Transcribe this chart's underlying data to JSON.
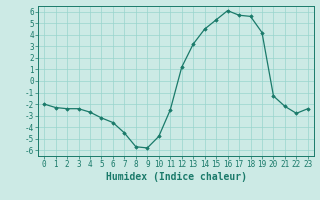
{
  "x": [
    0,
    1,
    2,
    3,
    4,
    5,
    6,
    7,
    8,
    9,
    10,
    11,
    12,
    13,
    14,
    15,
    16,
    17,
    18,
    19,
    20,
    21,
    22,
    23
  ],
  "y": [
    -2.0,
    -2.3,
    -2.4,
    -2.4,
    -2.7,
    -3.2,
    -3.6,
    -4.5,
    -5.7,
    -5.8,
    -4.8,
    -2.5,
    1.2,
    3.2,
    4.5,
    5.3,
    6.1,
    5.7,
    5.6,
    4.2,
    -1.3,
    -2.2,
    -2.8,
    -2.4
  ],
  "line_color": "#1a7a6a",
  "marker": "D",
  "marker_size": 1.8,
  "bg_color": "#cceae5",
  "grid_color": "#99d5ce",
  "axis_color": "#1a7a6a",
  "tick_color": "#1a7a6a",
  "xlabel": "Humidex (Indice chaleur)",
  "ylim": [
    -6.5,
    6.5
  ],
  "xlim": [
    -0.5,
    23.5
  ],
  "yticks": [
    -6,
    -5,
    -4,
    -3,
    -2,
    -1,
    0,
    1,
    2,
    3,
    4,
    5,
    6
  ],
  "xticks": [
    0,
    1,
    2,
    3,
    4,
    5,
    6,
    7,
    8,
    9,
    10,
    11,
    12,
    13,
    14,
    15,
    16,
    17,
    18,
    19,
    20,
    21,
    22,
    23
  ],
  "font_size": 5.5,
  "label_font_size": 7.0,
  "linewidth": 0.9
}
